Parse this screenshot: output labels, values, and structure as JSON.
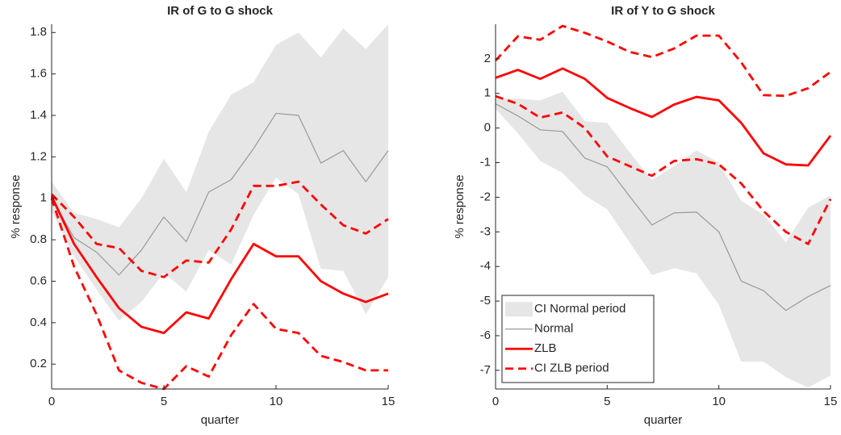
{
  "chart_data": [
    {
      "type": "line",
      "title": "IR of G to G shock",
      "xlabel": "quarter",
      "ylabel": "% response",
      "x": [
        0,
        1,
        2,
        3,
        4,
        5,
        6,
        7,
        8,
        9,
        10,
        11,
        12,
        13,
        14,
        15
      ],
      "xlim": [
        0,
        15
      ],
      "xticks": [
        0,
        5,
        10,
        15
      ],
      "ylim": [
        0.08,
        1.84
      ],
      "yticks": [
        0.2,
        0.4,
        0.6,
        0.8,
        1,
        1.2,
        1.4,
        1.6,
        1.8
      ],
      "series": [
        {
          "color": "#e6e6e6",
          "lower": [
            0.94,
            0.72,
            0.56,
            0.41,
            0.5,
            0.64,
            0.55,
            0.75,
            0.68,
            0.92,
            1.1,
            1.02,
            0.66,
            0.65,
            0.44,
            0.62
          ],
          "upper": [
            1.08,
            0.93,
            0.9,
            0.86,
            1.0,
            1.19,
            1.03,
            1.32,
            1.5,
            1.56,
            1.74,
            1.8,
            1.68,
            1.82,
            1.72,
            1.84
          ]
        },
        {
          "color": "#999999",
          "linewidth": 1.2,
          "values": [
            1.0,
            0.81,
            0.74,
            0.63,
            0.75,
            0.91,
            0.79,
            1.03,
            1.09,
            1.24,
            1.41,
            1.4,
            1.17,
            1.23,
            1.08,
            1.23
          ]
        },
        {
          "color": "#ff0000",
          "linewidth": 2.8,
          "values": [
            1.01,
            0.78,
            0.62,
            0.47,
            0.38,
            0.35,
            0.45,
            0.42,
            0.61,
            0.78,
            0.72,
            0.72,
            0.6,
            0.54,
            0.5,
            0.54
          ]
        },
        {
          "color": "#ff0000",
          "linewidth": 2.8,
          "linestyle": "dashed",
          "lower": [
            1.0,
            0.67,
            0.44,
            0.17,
            0.11,
            0.08,
            0.19,
            0.14,
            0.34,
            0.49,
            0.37,
            0.35,
            0.24,
            0.21,
            0.17,
            0.17
          ],
          "upper": [
            1.02,
            0.91,
            0.78,
            0.76,
            0.65,
            0.62,
            0.7,
            0.69,
            0.85,
            1.06,
            1.06,
            1.08,
            0.97,
            0.87,
            0.83,
            0.9
          ]
        }
      ]
    },
    {
      "type": "line",
      "title": "IR of Y to G shock",
      "xlabel": "quarter",
      "ylabel": "% response",
      "x": [
        0,
        1,
        2,
        3,
        4,
        5,
        6,
        7,
        8,
        9,
        10,
        11,
        12,
        13,
        14,
        15
      ],
      "xlim": [
        0,
        15
      ],
      "xticks": [
        0,
        5,
        10,
        15
      ],
      "ylim": [
        -7.54,
        3.0
      ],
      "yticks": [
        -7,
        -6,
        -5,
        -4,
        -3,
        -2,
        -1,
        0,
        1,
        2
      ],
      "legend": "lower left",
      "series": [
        {
          "name": "CI Normal period",
          "color": "#e6e6e6",
          "lower": [
            0.55,
            -0.15,
            -0.95,
            -1.3,
            -1.95,
            -2.35,
            -3.3,
            -4.25,
            -4.05,
            -4.2,
            -5.1,
            -6.75,
            -6.75,
            -7.2,
            -7.5,
            -7.15
          ],
          "upper": [
            0.85,
            0.85,
            0.8,
            1.05,
            0.2,
            0.15,
            -0.7,
            -1.5,
            -1.1,
            -0.65,
            -1.0,
            -2.1,
            -2.5,
            -3.3,
            -2.3,
            -1.95
          ]
        },
        {
          "name": "Normal",
          "color": "#999999",
          "linewidth": 1.2,
          "values": [
            0.7,
            0.35,
            -0.05,
            -0.1,
            -0.87,
            -1.12,
            -1.97,
            -2.8,
            -2.45,
            -2.43,
            -3.0,
            -4.42,
            -4.7,
            -5.27,
            -4.87,
            -4.55
          ]
        },
        {
          "name": "ZLB",
          "color": "#ff0000",
          "linewidth": 2.8,
          "values": [
            1.45,
            1.68,
            1.42,
            1.72,
            1.42,
            0.87,
            0.58,
            0.32,
            0.68,
            0.9,
            0.8,
            0.15,
            -0.73,
            -1.05,
            -1.08,
            -0.22
          ]
        },
        {
          "name": "CI ZLB period",
          "color": "#ff0000",
          "linewidth": 2.8,
          "linestyle": "dashed",
          "lower": [
            0.92,
            0.7,
            0.3,
            0.45,
            0.0,
            -0.82,
            -1.1,
            -1.38,
            -0.95,
            -0.9,
            -1.05,
            -1.6,
            -2.4,
            -3.0,
            -3.35,
            -2.05
          ],
          "upper": [
            1.95,
            2.65,
            2.55,
            2.95,
            2.75,
            2.5,
            2.2,
            2.05,
            2.3,
            2.67,
            2.67,
            1.9,
            0.95,
            0.93,
            1.15,
            1.62
          ]
        }
      ]
    }
  ]
}
